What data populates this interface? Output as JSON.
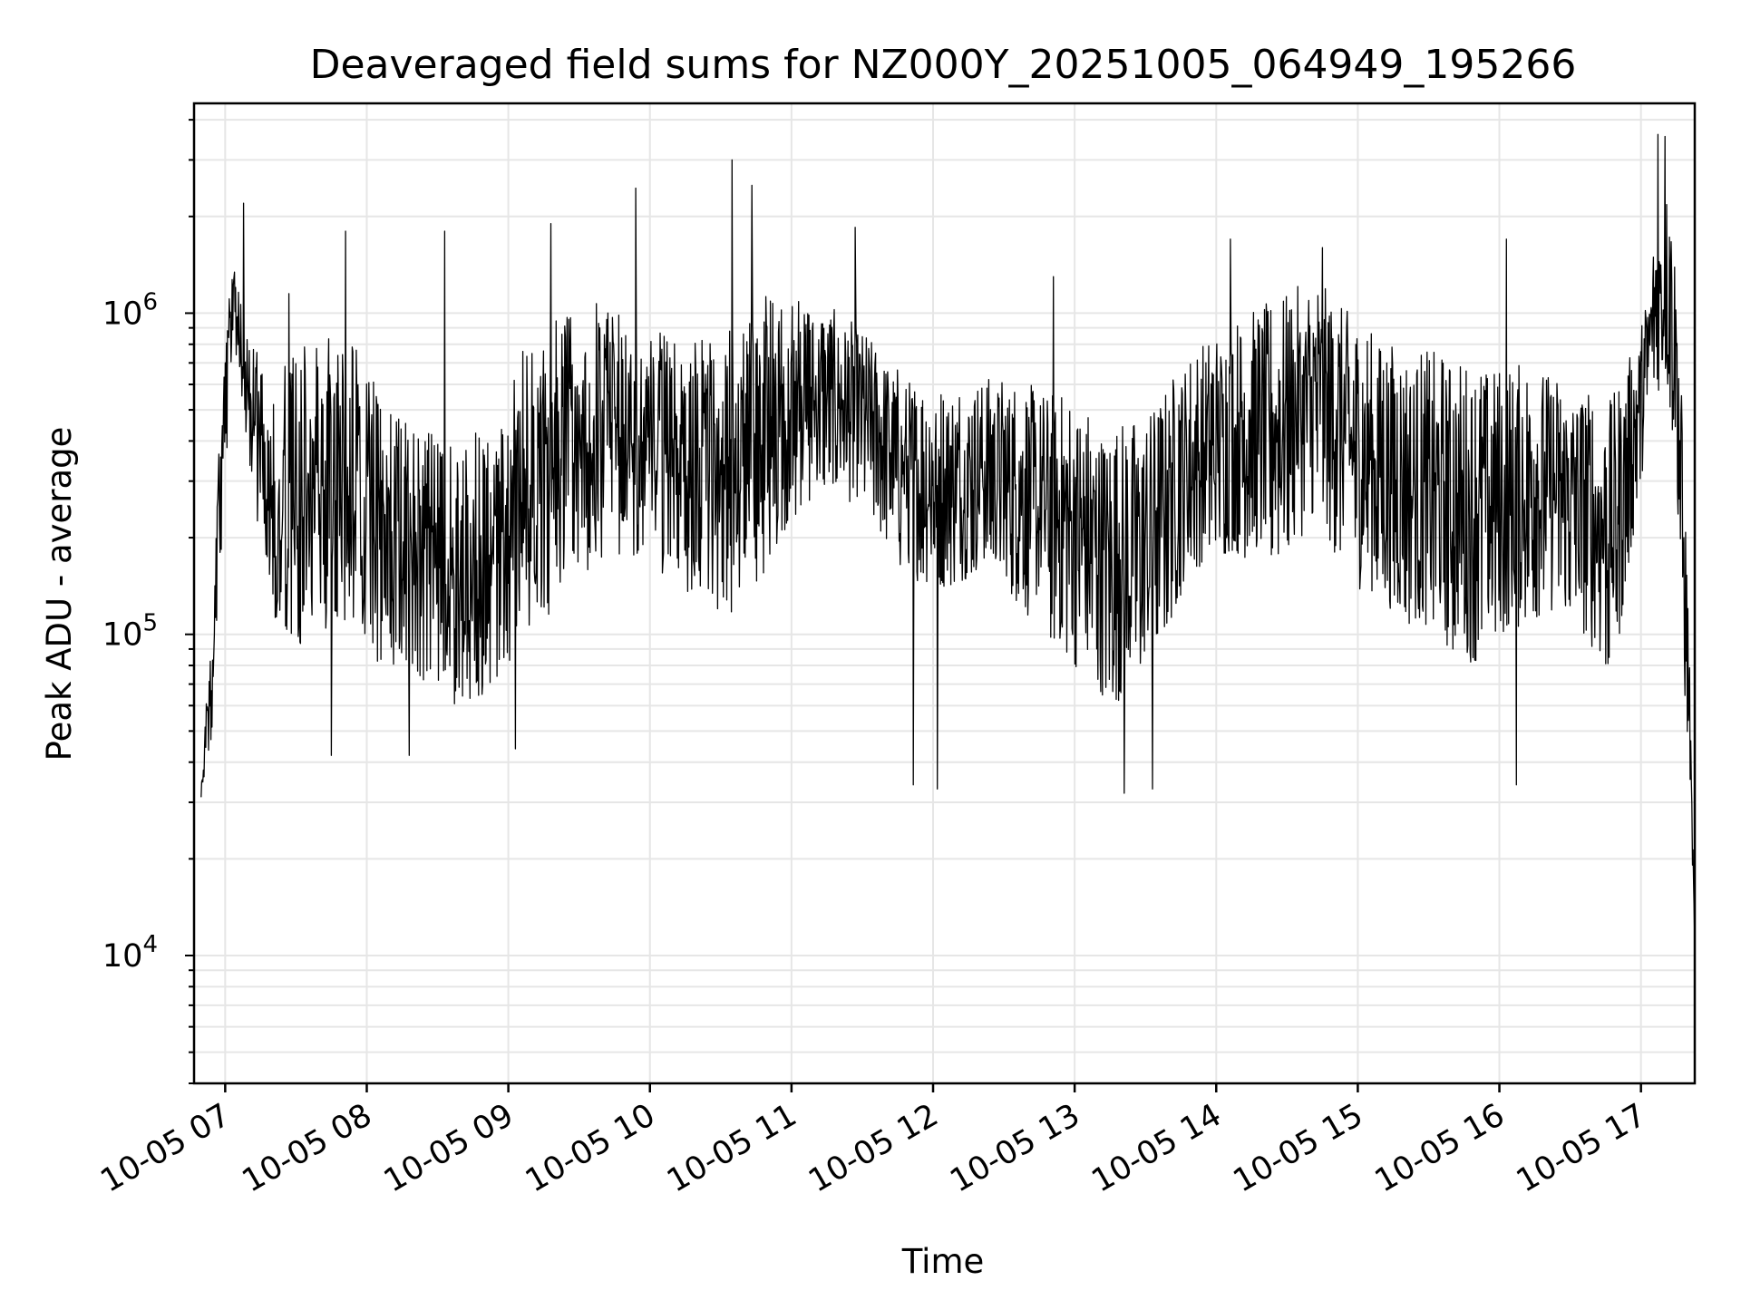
{
  "colors": {
    "background": "#ffffff",
    "line": "#000000",
    "grid": "#e6e6e6",
    "frame": "#000000"
  },
  "chart_data": {
    "type": "line",
    "title": "Deaveraged field sums for NZ000Y_20251005_064949_195266",
    "xlabel": "Time",
    "ylabel": "Peak ADU - average",
    "yscale": "log",
    "ylim": [
      4000,
      4500000
    ],
    "xlim_hours": [
      6.78,
      17.38
    ],
    "grid": true,
    "x_ticks": [
      {
        "hour": 7,
        "label": "10-05 07"
      },
      {
        "hour": 8,
        "label": "10-05 08"
      },
      {
        "hour": 9,
        "label": "10-05 09"
      },
      {
        "hour": 10,
        "label": "10-05 10"
      },
      {
        "hour": 11,
        "label": "10-05 11"
      },
      {
        "hour": 12,
        "label": "10-05 12"
      },
      {
        "hour": 13,
        "label": "10-05 13"
      },
      {
        "hour": 14,
        "label": "10-05 14"
      },
      {
        "hour": 15,
        "label": "10-05 15"
      },
      {
        "hour": 16,
        "label": "10-05 16"
      },
      {
        "hour": 17,
        "label": "10-05 17"
      }
    ],
    "y_ticks": [
      {
        "value": 10000,
        "base": "10",
        "exp": "4"
      },
      {
        "value": 100000,
        "base": "10",
        "exp": "5"
      },
      {
        "value": 1000000,
        "base": "10",
        "exp": "6"
      }
    ],
    "series": [
      {
        "name": "field sums",
        "envelope": {
          "hours": [
            6.83,
            6.9,
            6.98,
            7.05,
            7.15,
            7.3,
            7.55,
            7.85,
            8.1,
            8.35,
            8.6,
            8.85,
            9.1,
            9.4,
            9.7,
            10.0,
            10.3,
            10.6,
            10.9,
            11.2,
            11.5,
            11.8,
            12.1,
            12.4,
            12.7,
            13.0,
            13.25,
            13.5,
            13.8,
            14.1,
            14.4,
            14.7,
            15.0,
            15.3,
            15.6,
            15.8,
            16.0,
            16.2,
            16.4,
            16.6,
            16.8,
            17.0,
            17.1,
            17.2,
            17.25,
            17.3,
            17.34,
            17.38
          ],
          "low": [
            27000,
            45000,
            200000,
            800000,
            400000,
            120000,
            90000,
            110000,
            80000,
            75000,
            60000,
            65000,
            90000,
            130000,
            180000,
            170000,
            120000,
            110000,
            180000,
            280000,
            250000,
            150000,
            140000,
            160000,
            110000,
            80000,
            60000,
            70000,
            150000,
            180000,
            160000,
            220000,
            140000,
            110000,
            90000,
            80000,
            90000,
            110000,
            120000,
            100000,
            70000,
            300000,
            600000,
            500000,
            300000,
            70000,
            40000,
            11000
          ],
          "high": [
            40000,
            90000,
            700000,
            1400000,
            1100000,
            600000,
            800000,
            900000,
            550000,
            450000,
            400000,
            500000,
            850000,
            1000000,
            1100000,
            900000,
            800000,
            950000,
            1200000,
            1100000,
            900000,
            650000,
            600000,
            650000,
            600000,
            550000,
            450000,
            500000,
            750000,
            950000,
            1100000,
            1300000,
            950000,
            800000,
            750000,
            700000,
            700000,
            700000,
            650000,
            600000,
            550000,
            900000,
            1800000,
            3000000,
            1600000,
            400000,
            100000,
            11000
          ]
        },
        "spikes": [
          {
            "hour": 7.13,
            "value": 2200000
          },
          {
            "hour": 7.45,
            "value": 1150000
          },
          {
            "hour": 7.85,
            "value": 1800000
          },
          {
            "hour": 8.55,
            "value": 1800000
          },
          {
            "hour": 9.3,
            "value": 1900000
          },
          {
            "hour": 9.9,
            "value": 2450000
          },
          {
            "hour": 10.58,
            "value": 3000000
          },
          {
            "hour": 10.72,
            "value": 2500000
          },
          {
            "hour": 11.45,
            "value": 1850000
          },
          {
            "hour": 12.85,
            "value": 1300000
          },
          {
            "hour": 14.1,
            "value": 1700000
          },
          {
            "hour": 14.75,
            "value": 1600000
          },
          {
            "hour": 16.05,
            "value": 1700000
          },
          {
            "hour": 17.12,
            "value": 3600000
          },
          {
            "hour": 17.17,
            "value": 3550000
          },
          {
            "hour": 11.86,
            "value": 34000
          },
          {
            "hour": 12.03,
            "value": 33000
          },
          {
            "hour": 13.35,
            "value": 32000
          },
          {
            "hour": 13.55,
            "value": 33000
          },
          {
            "hour": 16.12,
            "value": 34000
          },
          {
            "hour": 7.75,
            "value": 42000
          },
          {
            "hour": 8.3,
            "value": 42000
          },
          {
            "hour": 9.05,
            "value": 44000
          }
        ]
      }
    ]
  }
}
